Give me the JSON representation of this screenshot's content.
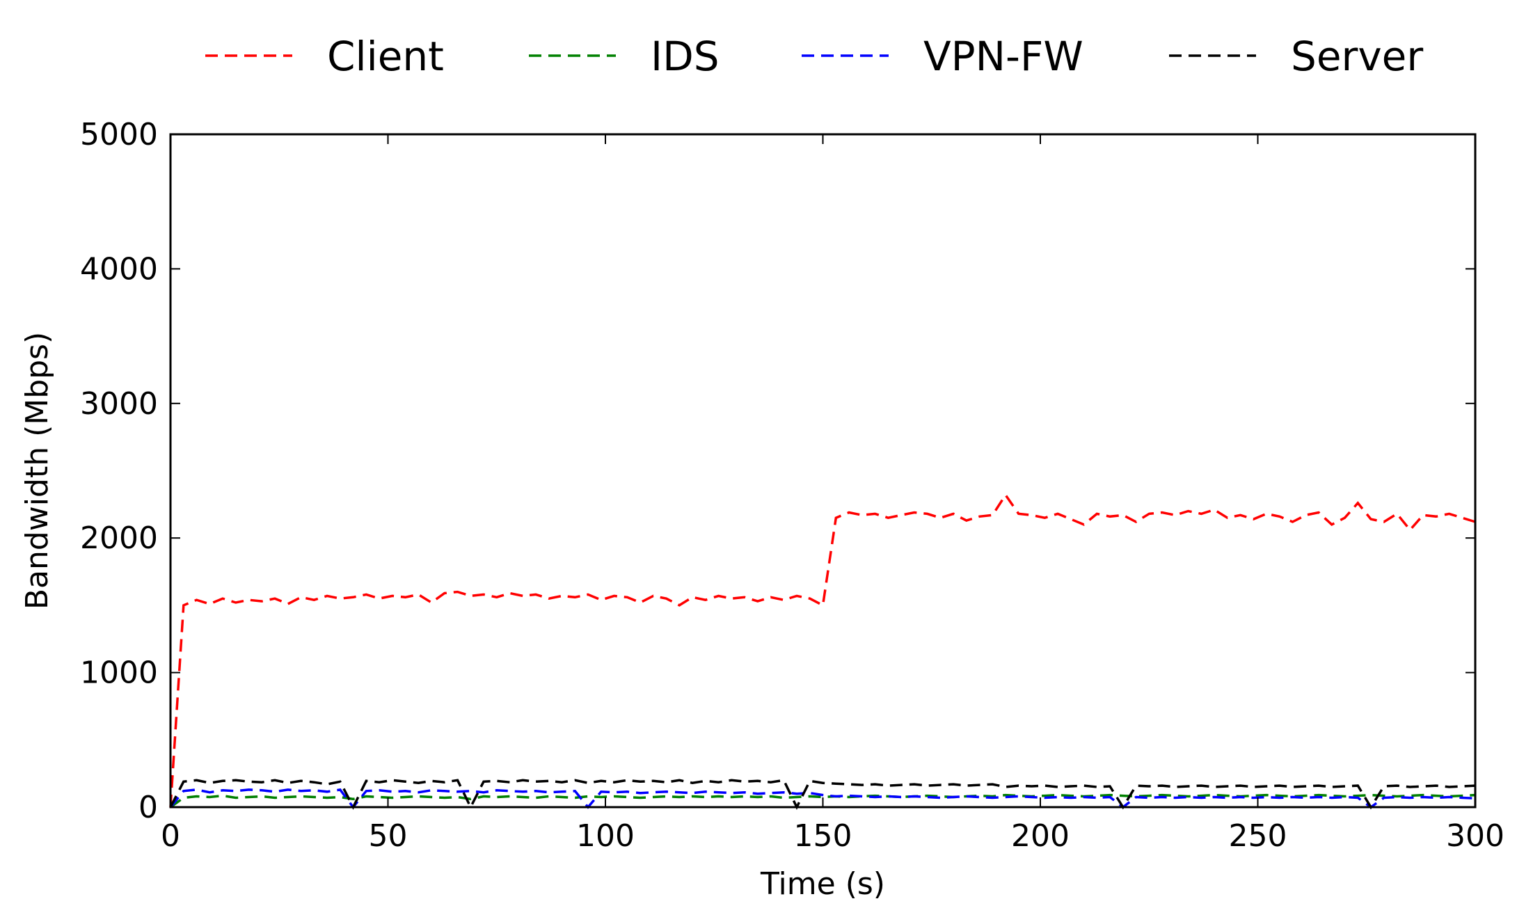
{
  "chart_data": {
    "type": "line",
    "title": "",
    "xlabel": "Time (s)",
    "ylabel": "Bandwidth (Mbps)",
    "xlim": [
      0,
      300
    ],
    "ylim": [
      0,
      5000
    ],
    "xticks": [
      0,
      50,
      100,
      150,
      200,
      250,
      300
    ],
    "yticks": [
      0,
      1000,
      2000,
      3000,
      4000,
      5000
    ],
    "xtick_labels": [
      "0",
      "50",
      "100",
      "150",
      "200",
      "250",
      "300"
    ],
    "ytick_labels": [
      "0",
      "1000",
      "2000",
      "3000",
      "4000",
      "5000"
    ],
    "grid": false,
    "legend_position": "top, outside plot area",
    "x": [
      0,
      3,
      6,
      9,
      12,
      15,
      18,
      21,
      24,
      27,
      30,
      33,
      36,
      39,
      42,
      45,
      48,
      51,
      54,
      57,
      60,
      63,
      66,
      69,
      72,
      75,
      78,
      81,
      84,
      87,
      90,
      93,
      96,
      99,
      102,
      105,
      108,
      111,
      114,
      117,
      120,
      123,
      126,
      129,
      132,
      135,
      138,
      141,
      144,
      147,
      150,
      153,
      156,
      159,
      162,
      165,
      168,
      171,
      174,
      177,
      180,
      183,
      186,
      189,
      192,
      195,
      198,
      201,
      204,
      207,
      210,
      213,
      216,
      219,
      222,
      225,
      228,
      231,
      234,
      237,
      240,
      243,
      246,
      249,
      252,
      255,
      258,
      261,
      264,
      267,
      270,
      273,
      276,
      279,
      282,
      285,
      288,
      291,
      294,
      297,
      300
    ],
    "series": [
      {
        "name": "Client",
        "color": "#ff0000",
        "values": [
          0,
          1500,
          1540,
          1510,
          1550,
          1520,
          1540,
          1530,
          1550,
          1510,
          1560,
          1540,
          1570,
          1550,
          1560,
          1580,
          1550,
          1570,
          1560,
          1580,
          1520,
          1590,
          1600,
          1570,
          1580,
          1560,
          1590,
          1570,
          1580,
          1550,
          1570,
          1560,
          1580,
          1540,
          1570,
          1560,
          1520,
          1570,
          1550,
          1500,
          1560,
          1540,
          1570,
          1550,
          1560,
          1530,
          1560,
          1540,
          1570,
          1550,
          1500,
          2150,
          2190,
          2170,
          2180,
          2150,
          2170,
          2190,
          2180,
          2150,
          2180,
          2130,
          2160,
          2170,
          2320,
          2180,
          2170,
          2150,
          2180,
          2140,
          2100,
          2180,
          2160,
          2170,
          2120,
          2180,
          2190,
          2170,
          2200,
          2180,
          2210,
          2150,
          2170,
          2140,
          2180,
          2160,
          2120,
          2170,
          2190,
          2100,
          2150,
          2260,
          2140,
          2120,
          2180,
          2060,
          2170,
          2160,
          2180,
          2150,
          2120
        ]
      },
      {
        "name": "IDS",
        "color": "#008000",
        "values": [
          0,
          70,
          80,
          75,
          85,
          70,
          75,
          80,
          70,
          75,
          80,
          75,
          70,
          75,
          60,
          80,
          75,
          70,
          75,
          80,
          75,
          70,
          75,
          60,
          80,
          75,
          80,
          75,
          70,
          80,
          75,
          70,
          80,
          75,
          80,
          75,
          70,
          75,
          80,
          75,
          80,
          75,
          80,
          75,
          80,
          75,
          80,
          70,
          75,
          80,
          75,
          80,
          75,
          80,
          85,
          80,
          75,
          80,
          85,
          80,
          75,
          80,
          85,
          80,
          90,
          85,
          80,
          85,
          90,
          85,
          80,
          85,
          90,
          85,
          80,
          85,
          90,
          85,
          80,
          85,
          90,
          85,
          80,
          85,
          90,
          85,
          80,
          85,
          90,
          85,
          80,
          85,
          90,
          85,
          80,
          85,
          90,
          85,
          80,
          85,
          90
        ]
      },
      {
        "name": "VPN-FW",
        "color": "#0000ff",
        "values": [
          0,
          120,
          130,
          110,
          125,
          120,
          130,
          125,
          115,
          130,
          120,
          125,
          115,
          130,
          0,
          120,
          125,
          115,
          120,
          110,
          125,
          120,
          115,
          120,
          110,
          125,
          120,
          115,
          120,
          110,
          115,
          120,
          0,
          115,
          110,
          115,
          105,
          110,
          115,
          110,
          105,
          115,
          110,
          105,
          110,
          100,
          105,
          110,
          100,
          105,
          90,
          80,
          85,
          80,
          75,
          80,
          75,
          80,
          75,
          70,
          75,
          80,
          75,
          70,
          75,
          80,
          75,
          70,
          75,
          70,
          75,
          70,
          75,
          0,
          75,
          70,
          75,
          70,
          75,
          70,
          75,
          70,
          75,
          70,
          75,
          70,
          75,
          70,
          75,
          70,
          75,
          70,
          0,
          70,
          75,
          70,
          75,
          70,
          75,
          70,
          65
        ]
      },
      {
        "name": "Server",
        "color": "#000000",
        "values": [
          0,
          190,
          200,
          180,
          195,
          200,
          190,
          185,
          200,
          180,
          195,
          185,
          170,
          190,
          0,
          195,
          185,
          200,
          190,
          180,
          195,
          185,
          200,
          0,
          190,
          195,
          185,
          200,
          190,
          195,
          185,
          200,
          180,
          195,
          185,
          200,
          190,
          195,
          185,
          200,
          180,
          195,
          185,
          200,
          190,
          195,
          185,
          200,
          0,
          195,
          180,
          175,
          170,
          165,
          170,
          160,
          165,
          170,
          160,
          165,
          170,
          160,
          165,
          170,
          150,
          160,
          155,
          160,
          150,
          155,
          160,
          150,
          155,
          0,
          160,
          155,
          160,
          150,
          155,
          160,
          150,
          155,
          160,
          150,
          155,
          160,
          150,
          155,
          160,
          150,
          155,
          160,
          0,
          155,
          160,
          150,
          155,
          160,
          150,
          155,
          160
        ]
      }
    ]
  }
}
